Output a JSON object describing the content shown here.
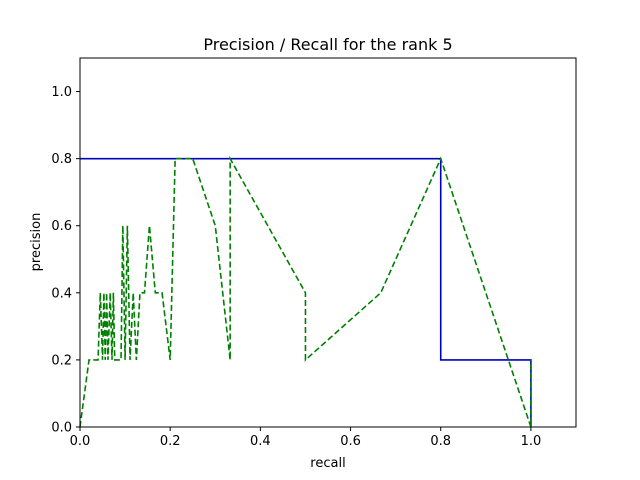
{
  "chart_data": {
    "type": "line",
    "title": "Precision / Recall for the rank 5",
    "xlabel": "recall",
    "ylabel": "precision",
    "xlim": [
      0.0,
      1.1
    ],
    "ylim": [
      0.0,
      1.1
    ],
    "xticks": [
      0.0,
      0.2,
      0.4,
      0.6,
      0.8,
      1.0
    ],
    "yticks": [
      0.0,
      0.2,
      0.4,
      0.6,
      0.8,
      1.0
    ],
    "xtick_labels": [
      "0.0",
      "0.2",
      "0.4",
      "0.6",
      "0.8",
      "1.0"
    ],
    "ytick_labels": [
      "0.0",
      "0.2",
      "0.4",
      "0.6",
      "0.8",
      "1.0"
    ],
    "grid": false,
    "series": [
      {
        "style": "solid",
        "color": "#0000bf",
        "x": [
          0.0,
          0.8,
          0.8,
          1.0,
          1.0
        ],
        "y": [
          0.8,
          0.8,
          0.2,
          0.2,
          0.0
        ]
      },
      {
        "style": "dashed",
        "color": "#008000",
        "x": [
          0.0,
          0.02,
          0.04,
          0.045,
          0.05,
          0.053,
          0.056,
          0.059,
          0.062,
          0.067,
          0.071,
          0.074,
          0.077,
          0.083,
          0.091,
          0.095,
          0.1,
          0.105,
          0.111,
          0.118,
          0.125,
          0.133,
          0.143,
          0.154,
          0.167,
          0.182,
          0.2,
          0.211,
          0.222,
          0.25,
          0.3,
          0.333,
          0.333,
          0.5,
          0.5,
          0.667,
          0.8,
          1.0,
          1.0
        ],
        "y": [
          0.0,
          0.2,
          0.2,
          0.4,
          0.2,
          0.4,
          0.2,
          0.4,
          0.2,
          0.4,
          0.2,
          0.4,
          0.2,
          0.2,
          0.2,
          0.6,
          0.2,
          0.6,
          0.2,
          0.4,
          0.2,
          0.4,
          0.4,
          0.6,
          0.4,
          0.4,
          0.2,
          0.8,
          0.8,
          0.8,
          0.6,
          0.2,
          0.8,
          0.4,
          0.2,
          0.4,
          0.8,
          0.0,
          0.2
        ]
      }
    ]
  }
}
